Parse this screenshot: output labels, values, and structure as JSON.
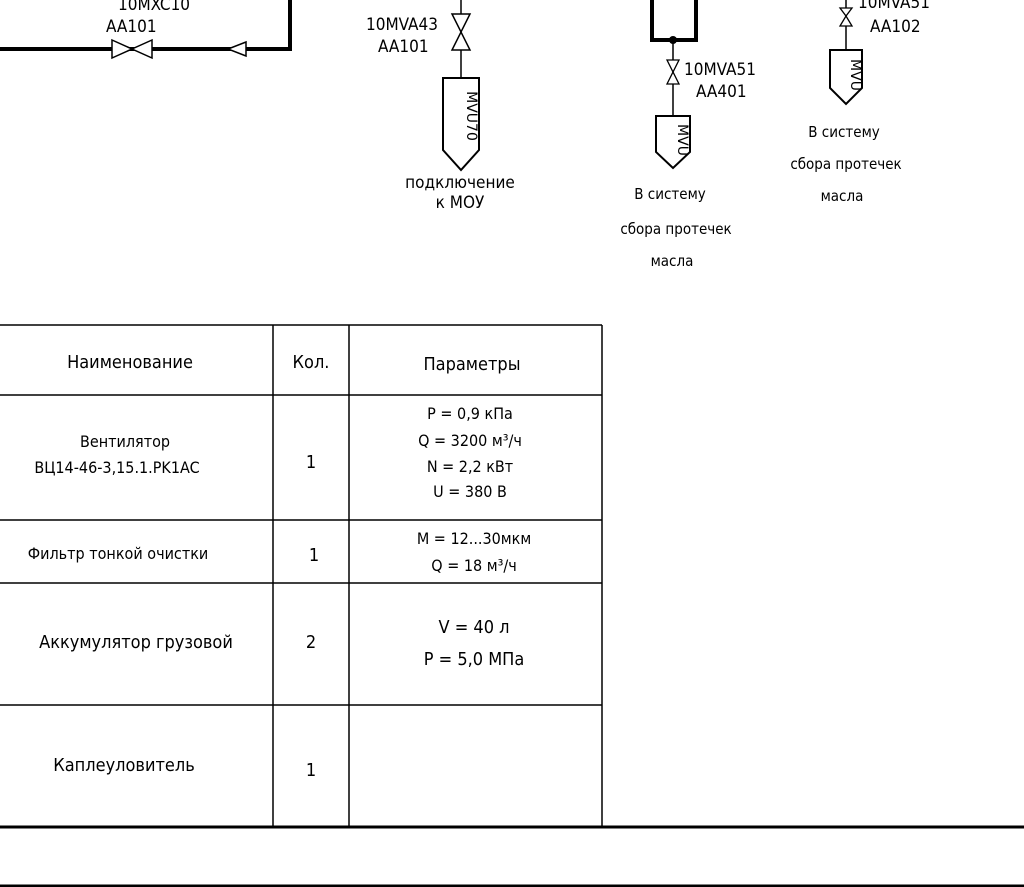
{
  "diagram": {
    "tags": {
      "left_top": "10MXC10",
      "left_bottom": "AA101",
      "center_top": "10MVA43",
      "center_bottom": "AA101",
      "right_mid_top": "10MVA51",
      "right_mid_bottom": "AA401",
      "far_right_top": "10MVA51",
      "far_right_bottom": "AA102"
    },
    "hoppers": {
      "center": "MVU70",
      "right_mid": "MVU",
      "far_right": "MVU"
    },
    "captions": {
      "center": [
        "подключение",
        "к МОУ"
      ],
      "right_mid": [
        "В систему",
        "сбора протечек",
        "масла"
      ],
      "far_right": [
        "В систему",
        "сбора протечек",
        "масла"
      ]
    }
  },
  "table": {
    "headers": [
      "Наименование",
      "Кол.",
      "Параметры"
    ],
    "rows": [
      {
        "name": [
          "Вентилятор",
          "ВЦ14-46-3,15.1.PK1AC"
        ],
        "qty": "1",
        "params": [
          "P = 0,9 кПа",
          "Q = 3200 м³/ч",
          "N = 2,2 кВт",
          "U = 380 В"
        ]
      },
      {
        "name": [
          "Фильтр тонкой очистки"
        ],
        "qty": "1",
        "params": [
          "M = 12...30мкм",
          "Q = 18 м³/ч"
        ]
      },
      {
        "name": [
          "Аккумулятор грузовой"
        ],
        "qty": "2",
        "params": [
          "V = 40 л",
          "P = 5,0 МПа"
        ]
      },
      {
        "name": [
          "Каплеуловитель"
        ],
        "qty": "1",
        "params": []
      }
    ]
  }
}
